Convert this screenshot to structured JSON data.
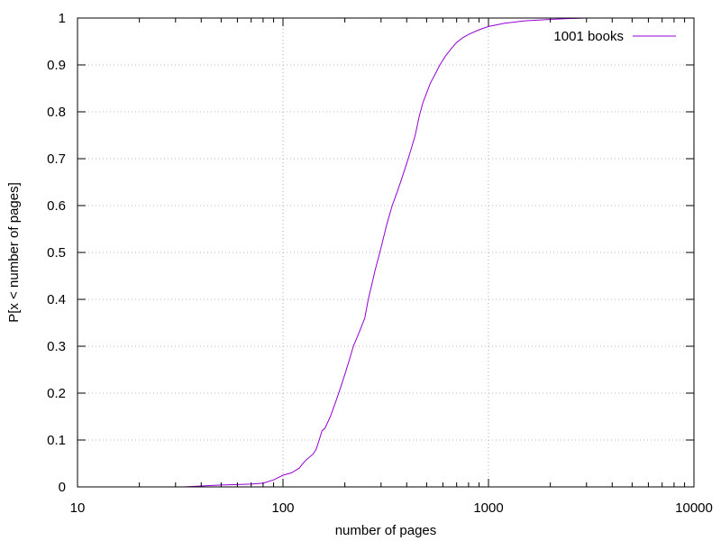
{
  "chart_data": {
    "type": "line",
    "title": "",
    "xlabel": "number of pages",
    "ylabel": "P[x < number of pages]",
    "xscale": "log",
    "xlim": [
      10,
      10000
    ],
    "ylim": [
      0,
      1
    ],
    "x_ticks": [
      10,
      100,
      1000,
      10000
    ],
    "x_tick_labels": [
      "10",
      "100",
      "1000",
      "10000"
    ],
    "y_ticks": [
      0,
      0.1,
      0.2,
      0.3,
      0.4,
      0.5,
      0.6,
      0.7,
      0.8,
      0.9,
      1
    ],
    "y_tick_labels": [
      "0",
      "0.1",
      "0.2",
      "0.3",
      "0.4",
      "0.5",
      "0.6",
      "0.7",
      "0.8",
      "0.9",
      "1"
    ],
    "grid": true,
    "legend_position": "top-right",
    "series": [
      {
        "name": "1001 books",
        "color": "#9400d3",
        "points": [
          [
            33,
            0.0
          ],
          [
            40,
            0.002
          ],
          [
            50,
            0.004
          ],
          [
            60,
            0.005
          ],
          [
            70,
            0.006
          ],
          [
            80,
            0.008
          ],
          [
            90,
            0.015
          ],
          [
            95,
            0.02
          ],
          [
            100,
            0.025
          ],
          [
            110,
            0.03
          ],
          [
            120,
            0.04
          ],
          [
            125,
            0.05
          ],
          [
            130,
            0.058
          ],
          [
            140,
            0.07
          ],
          [
            145,
            0.08
          ],
          [
            150,
            0.1
          ],
          [
            155,
            0.12
          ],
          [
            160,
            0.125
          ],
          [
            170,
            0.15
          ],
          [
            180,
            0.18
          ],
          [
            190,
            0.21
          ],
          [
            200,
            0.24
          ],
          [
            210,
            0.27
          ],
          [
            220,
            0.3
          ],
          [
            235,
            0.33
          ],
          [
            250,
            0.36
          ],
          [
            260,
            0.4
          ],
          [
            270,
            0.43
          ],
          [
            280,
            0.46
          ],
          [
            300,
            0.51
          ],
          [
            320,
            0.56
          ],
          [
            340,
            0.6
          ],
          [
            360,
            0.63
          ],
          [
            380,
            0.66
          ],
          [
            400,
            0.69
          ],
          [
            420,
            0.72
          ],
          [
            440,
            0.75
          ],
          [
            460,
            0.79
          ],
          [
            480,
            0.82
          ],
          [
            500,
            0.84
          ],
          [
            520,
            0.86
          ],
          [
            550,
            0.88
          ],
          [
            580,
            0.9
          ],
          [
            620,
            0.92
          ],
          [
            660,
            0.935
          ],
          [
            700,
            0.948
          ],
          [
            750,
            0.958
          ],
          [
            800,
            0.965
          ],
          [
            900,
            0.975
          ],
          [
            1000,
            0.982
          ],
          [
            1200,
            0.989
          ],
          [
            1500,
            0.994
          ],
          [
            2000,
            0.997
          ],
          [
            2500,
            0.999
          ],
          [
            3000,
            1.0
          ],
          [
            4000,
            1.0
          ]
        ]
      }
    ]
  }
}
